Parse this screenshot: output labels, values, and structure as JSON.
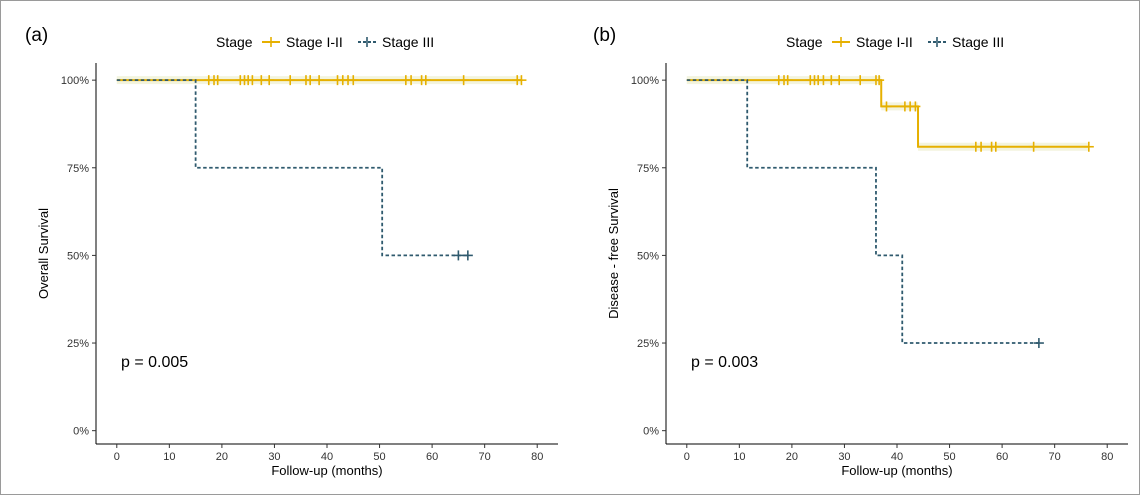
{
  "colors": {
    "stage_1_2": "#e6b000",
    "stage_3": "#2f5a6e",
    "ci_band": "#f3f4de",
    "axis": "#000000"
  },
  "chart_data": [
    {
      "type": "line",
      "subtype": "kaplan-meier",
      "panel_label": "(a)",
      "xlabel": "Follow-up (months)",
      "ylabel": "Overall Survival",
      "xlim": [
        0,
        80
      ],
      "ylim": [
        0,
        1
      ],
      "x_ticks": [
        "0",
        "10",
        "20",
        "30",
        "40",
        "50",
        "60",
        "70",
        "80"
      ],
      "y_ticks": [
        "0%",
        "25%",
        "50%",
        "75%",
        "100%"
      ],
      "legend_title": "Stage",
      "legend_position": "top-center",
      "grid": false,
      "annotation": "p = 0.005",
      "series": [
        {
          "name": "Stage I-II",
          "style": "solid",
          "steps": [
            [
              0,
              1.0
            ],
            [
              77,
              1.0
            ]
          ],
          "censored": [
            [
              17.5,
              1.0
            ],
            [
              18.5,
              1.0
            ],
            [
              19.2,
              1.0
            ],
            [
              23.5,
              1.0
            ],
            [
              24.3,
              1.0
            ],
            [
              25,
              1.0
            ],
            [
              25.8,
              1.0
            ],
            [
              27.5,
              1.0
            ],
            [
              29,
              1.0
            ],
            [
              33,
              1.0
            ],
            [
              36,
              1.0
            ],
            [
              36.8,
              1.0
            ],
            [
              38.5,
              1.0
            ],
            [
              42,
              1.0
            ],
            [
              43,
              1.0
            ],
            [
              44,
              1.0
            ],
            [
              45,
              1.0
            ],
            [
              55,
              1.0
            ],
            [
              56,
              1.0
            ],
            [
              58,
              1.0
            ],
            [
              58.8,
              1.0
            ],
            [
              66,
              1.0
            ],
            [
              76.2,
              1.0
            ],
            [
              77,
              1.0
            ]
          ]
        },
        {
          "name": "Stage III",
          "style": "dashed",
          "steps": [
            [
              0,
              1.0
            ],
            [
              15,
              1.0
            ],
            [
              15,
              0.75
            ],
            [
              50.5,
              0.75
            ],
            [
              50.5,
              0.5
            ],
            [
              67,
              0.5
            ]
          ],
          "censored": [
            [
              65,
              0.5
            ],
            [
              66.8,
              0.5
            ]
          ]
        }
      ]
    },
    {
      "type": "line",
      "subtype": "kaplan-meier",
      "panel_label": "(b)",
      "xlabel": "Follow-up (months)",
      "ylabel": "Disease - free Survival",
      "xlim": [
        0,
        80
      ],
      "ylim": [
        0,
        1
      ],
      "x_ticks": [
        "0",
        "10",
        "20",
        "30",
        "40",
        "50",
        "60",
        "70",
        "80"
      ],
      "y_ticks": [
        "0%",
        "25%",
        "50%",
        "75%",
        "100%"
      ],
      "legend_title": "Stage",
      "legend_position": "top-center",
      "grid": false,
      "annotation": "p = 0.003",
      "series": [
        {
          "name": "Stage I-II",
          "style": "solid",
          "steps": [
            [
              0,
              1.0
            ],
            [
              37,
              1.0
            ],
            [
              37,
              0.925
            ],
            [
              44,
              0.925
            ],
            [
              44,
              0.81
            ],
            [
              76.5,
              0.81
            ]
          ],
          "censored": [
            [
              17.5,
              1.0
            ],
            [
              18.5,
              1.0
            ],
            [
              19.2,
              1.0
            ],
            [
              23.5,
              1.0
            ],
            [
              24.3,
              1.0
            ],
            [
              25,
              1.0
            ],
            [
              26,
              1.0
            ],
            [
              27.5,
              1.0
            ],
            [
              29,
              1.0
            ],
            [
              33,
              1.0
            ],
            [
              36,
              1.0
            ],
            [
              36.6,
              1.0
            ],
            [
              38,
              0.925
            ],
            [
              41.5,
              0.925
            ],
            [
              42.5,
              0.925
            ],
            [
              43.5,
              0.925
            ],
            [
              55,
              0.81
            ],
            [
              56,
              0.81
            ],
            [
              58,
              0.81
            ],
            [
              58.8,
              0.81
            ],
            [
              66,
              0.81
            ],
            [
              76.5,
              0.81
            ]
          ]
        },
        {
          "name": "Stage III",
          "style": "dashed",
          "steps": [
            [
              0,
              1.0
            ],
            [
              11.5,
              1.0
            ],
            [
              11.5,
              0.75
            ],
            [
              36,
              0.75
            ],
            [
              36,
              0.5
            ],
            [
              41,
              0.5
            ],
            [
              41,
              0.25
            ],
            [
              67,
              0.25
            ]
          ],
          "censored": [
            [
              67,
              0.25
            ]
          ]
        }
      ]
    }
  ]
}
